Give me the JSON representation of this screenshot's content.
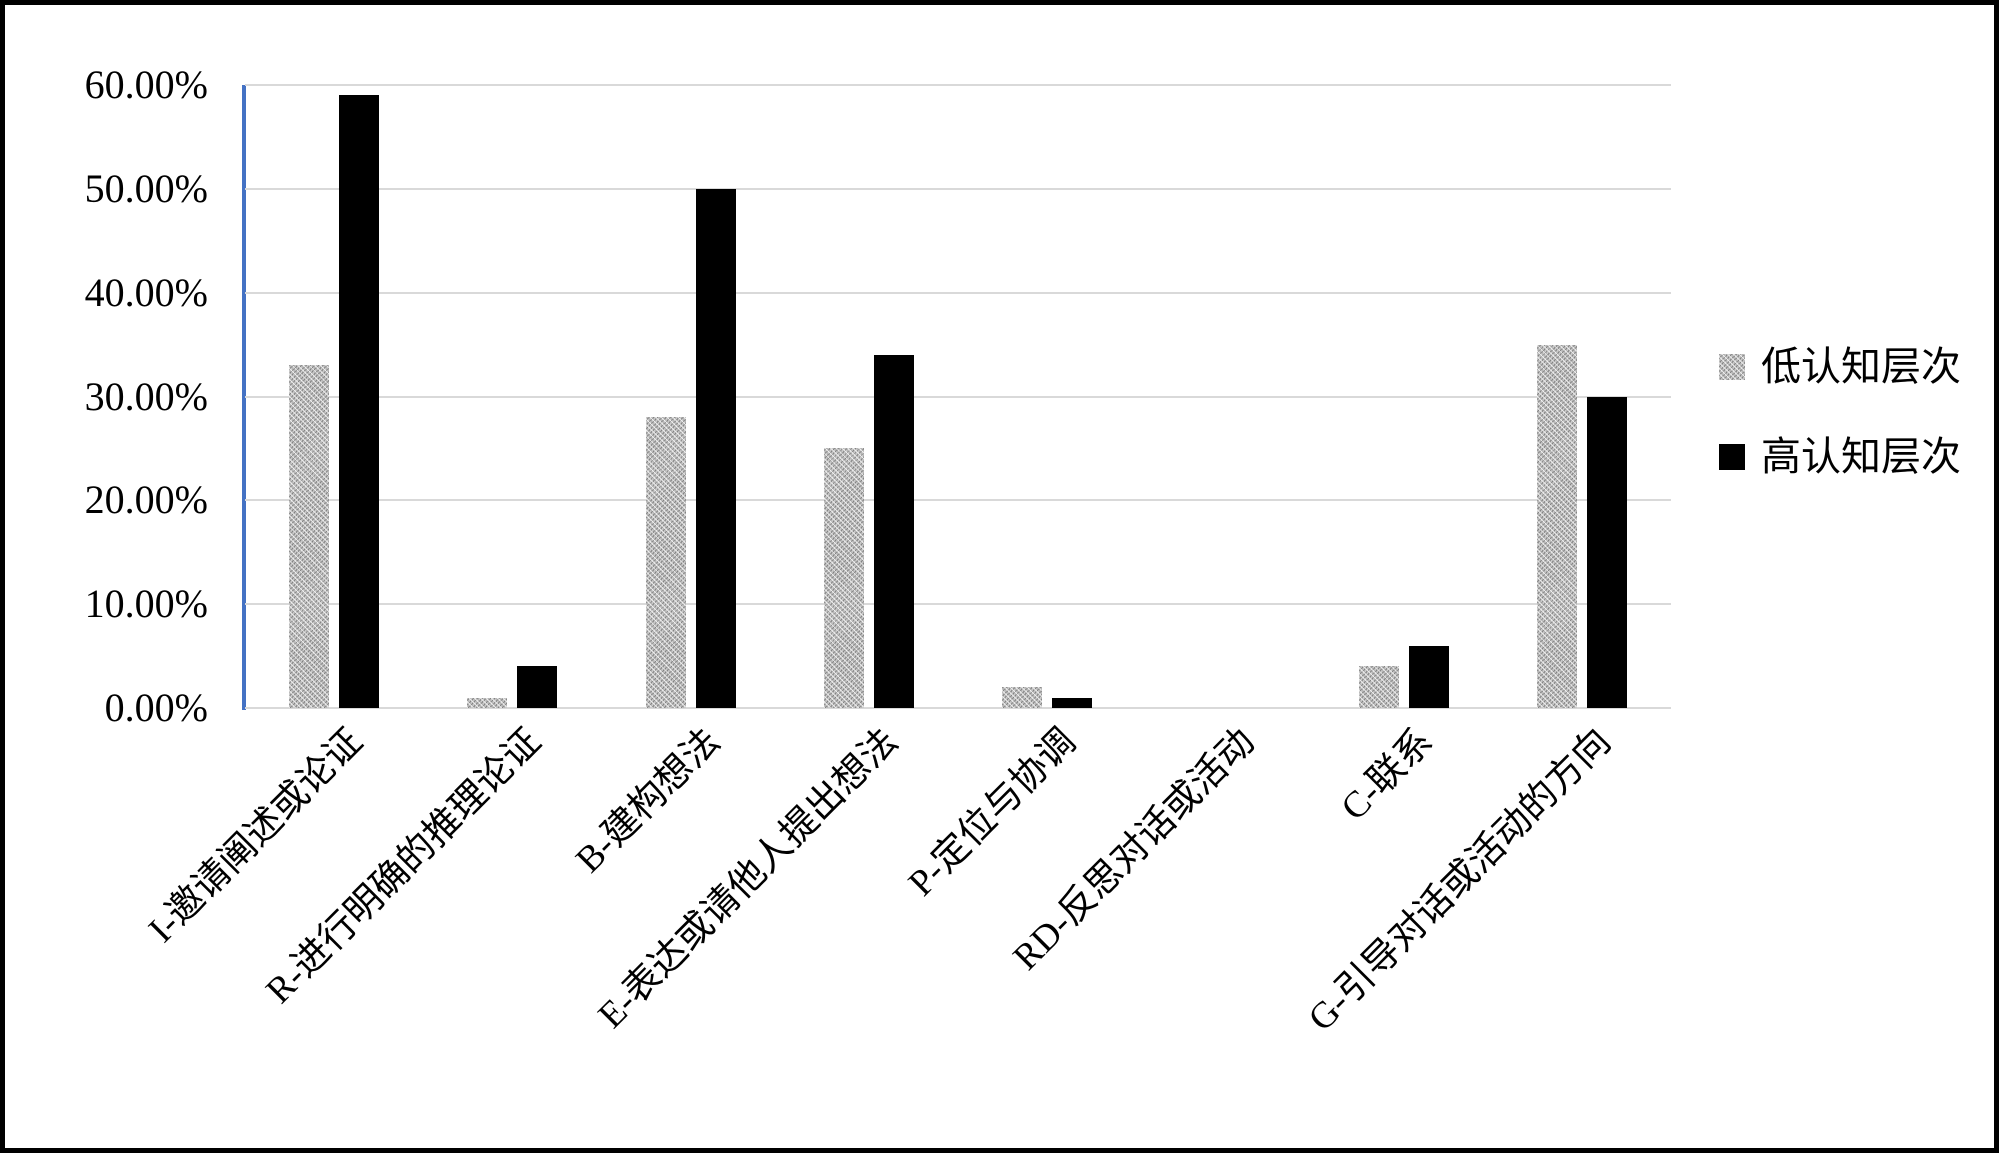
{
  "chart_data": {
    "type": "bar",
    "title": "",
    "xlabel": "",
    "ylabel": "",
    "categories": [
      "I-邀请阐述或论证",
      "R-进行明确的推理论证",
      "B-建构想法",
      "E-表达或请他人提出想法",
      "P-定位与协调",
      "RD-反思对话或活动",
      "C-联系",
      "G-引导对话或活动的方向"
    ],
    "series": [
      {
        "name": "低认知层次",
        "values": [
          33,
          1,
          28,
          25,
          2,
          0,
          4,
          35
        ],
        "color": "#a6a6a6",
        "pattern": "diagonal-hatch"
      },
      {
        "name": "高认知层次",
        "values": [
          59,
          4,
          50,
          34,
          1,
          0,
          6,
          30
        ],
        "color": "#000000",
        "pattern": "solid"
      }
    ],
    "y_axis": {
      "tick_labels": [
        "0.00%",
        "10.00%",
        "20.00%",
        "30.00%",
        "40.00%",
        "50.00%",
        "60.00%"
      ],
      "min": 0,
      "max": 60,
      "grid": true
    },
    "x_label_rotation_deg": 45,
    "legend_position": "right-middle",
    "colors": {
      "axis_line": "#4472C4",
      "gridline": "#d9d9d9",
      "frame_border": "#000000",
      "background": "#ffffff"
    }
  }
}
